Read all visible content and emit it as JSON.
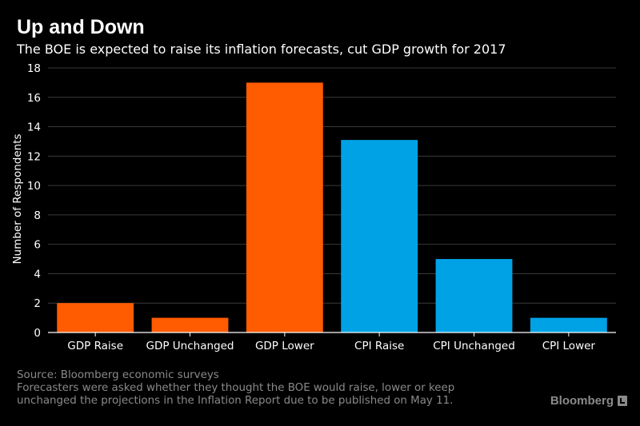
{
  "header": {
    "title": "Up and Down",
    "subtitle": "The BOE is expected to raise its inflation forecasts, cut GDP growth for 2017"
  },
  "footer": {
    "source": "Source: Bloomberg economic surveys",
    "note_line1": "Forecasters were asked whether they thought the BOE would raise, lower or keep",
    "note_line2": "unchanged the projections in the Inflation Report due to be published on May 11."
  },
  "brand": {
    "name": "Bloomberg",
    "icon": "bloomberg-terminal-icon",
    "color": "#8a8a8a"
  },
  "chart_data": {
    "type": "bar",
    "categories": [
      "GDP Raise",
      "GDP Unchanged",
      "GDP Lower",
      "CPI Raise",
      "CPI Unchanged",
      "CPI Lower"
    ],
    "values": [
      2,
      1,
      17,
      13.1,
      5,
      1
    ],
    "colors": [
      "#ff5b00",
      "#ff5b00",
      "#ff5b00",
      "#00a2e6",
      "#00a2e6",
      "#00a2e6"
    ],
    "xlabel": "",
    "ylabel": "Number of Respondents",
    "ylim": [
      0,
      18
    ],
    "yticks": [
      0,
      2,
      4,
      6,
      8,
      10,
      12,
      14,
      16,
      18
    ],
    "grid": true,
    "legend": "none"
  }
}
